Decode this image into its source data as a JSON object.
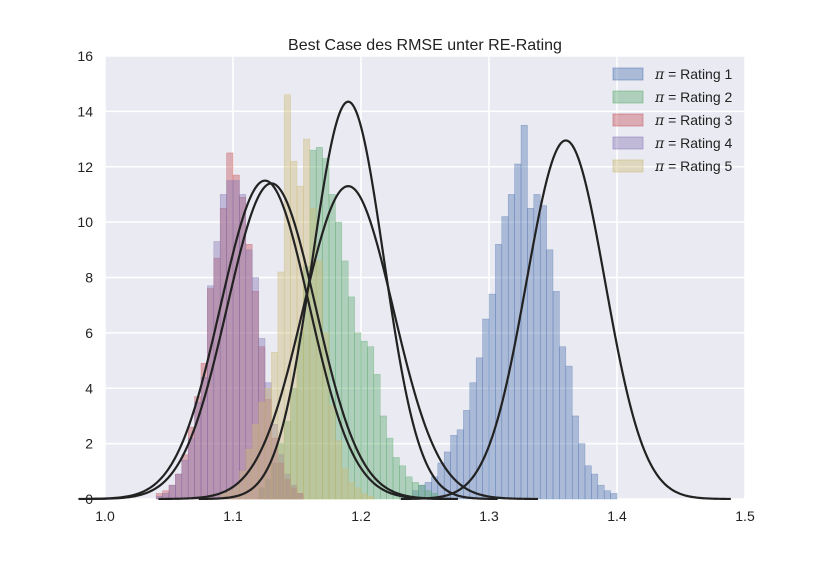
{
  "chart_data": {
    "type": "histogram",
    "title": "Best Case des RMSE unter RE-Rating",
    "xlabel": "",
    "ylabel": "",
    "xlim": [
      1.0,
      1.5
    ],
    "ylim": [
      0,
      16
    ],
    "xticks": [
      1.0,
      1.1,
      1.2,
      1.3,
      1.4,
      1.5
    ],
    "xtick_labels": [
      "1.0",
      "1.1",
      "1.2",
      "1.3",
      "1.4",
      "1.5"
    ],
    "yticks": [
      0,
      2,
      4,
      6,
      8,
      10,
      12,
      14,
      16
    ],
    "ytick_labels": [
      "0",
      "2",
      "4",
      "6",
      "8",
      "10",
      "12",
      "14",
      "16"
    ],
    "grid": true,
    "legend_position": "top-right",
    "legend_symbol": "π",
    "legend_equals": " = ",
    "bin_width": 0.005,
    "series": [
      {
        "name": "Rating 1",
        "color": "#4c72b0",
        "bin_start": 1.24,
        "counts": [
          0.3,
          0.5,
          0.6,
          0.8,
          1.3,
          1.7,
          2.3,
          2.5,
          3.2,
          4.2,
          5.1,
          6.5,
          7.4,
          9.2,
          10.2,
          11.0,
          12.1,
          13.5,
          10.5,
          11.0,
          10.6,
          9.0,
          7.5,
          5.5,
          4.8,
          3.0,
          2.0,
          1.2,
          0.9,
          0.5,
          0.3,
          0.2
        ],
        "fit": {
          "mean": 1.36,
          "std": 0.0307,
          "peak": 12.95
        }
      },
      {
        "name": "Rating 2",
        "color": "#55a868",
        "bin_start": 1.12,
        "counts": [
          0.4,
          0.7,
          1.3,
          2.0,
          2.8,
          4.0,
          6.0,
          8.4,
          12.6,
          12.7,
          12.3,
          11.0,
          10.0,
          8.6,
          7.3,
          6.0,
          5.7,
          5.5,
          4.5,
          3.0,
          2.2,
          1.5,
          1.2,
          0.8,
          0.6,
          0.5,
          0.3,
          0.2
        ],
        "fit": {
          "mean": 1.19,
          "std": 0.0353,
          "peak": 11.3
        }
      },
      {
        "name": "Rating 3",
        "color": "#c44e52",
        "bin_start": 1.04,
        "counts": [
          0.2,
          0.3,
          0.5,
          0.9,
          1.6,
          2.6,
          3.7,
          4.9,
          7.6,
          8.7,
          10.5,
          12.5,
          11.7,
          10.9,
          9.2,
          7.5,
          5.5,
          3.6,
          2.2,
          1.3,
          0.7,
          0.4,
          0.2
        ],
        "fit": {
          "mean": 1.125,
          "std": 0.0347,
          "peak": 11.5
        }
      },
      {
        "name": "Rating 4",
        "color": "#8172b2",
        "bin_start": 1.04,
        "counts": [
          0.1,
          0.2,
          0.5,
          0.9,
          1.4,
          2.2,
          3.5,
          4.4,
          7.7,
          9.3,
          11.0,
          11.5,
          11.5,
          11.0,
          9.0,
          8.0,
          5.8,
          4.2,
          2.7,
          1.6,
          0.9,
          0.5,
          0.2
        ],
        "fit": {
          "mean": 1.13,
          "std": 0.0347,
          "peak": 11.4
        }
      },
      {
        "name": "Rating 5",
        "color": "#ccb974",
        "bin_start": 1.09,
        "counts": [
          0.2,
          0.3,
          0.5,
          1.0,
          1.8,
          2.7,
          3.5,
          4.0,
          5.3,
          8.2,
          14.6,
          12.2,
          11.3,
          13.0,
          10.5,
          8.6,
          6.0,
          3.4,
          2.1,
          1.1,
          0.6,
          0.4,
          0.2,
          0.1
        ],
        "fit": {
          "mean": 1.19,
          "std": 0.0278,
          "peak": 14.35
        }
      }
    ]
  }
}
